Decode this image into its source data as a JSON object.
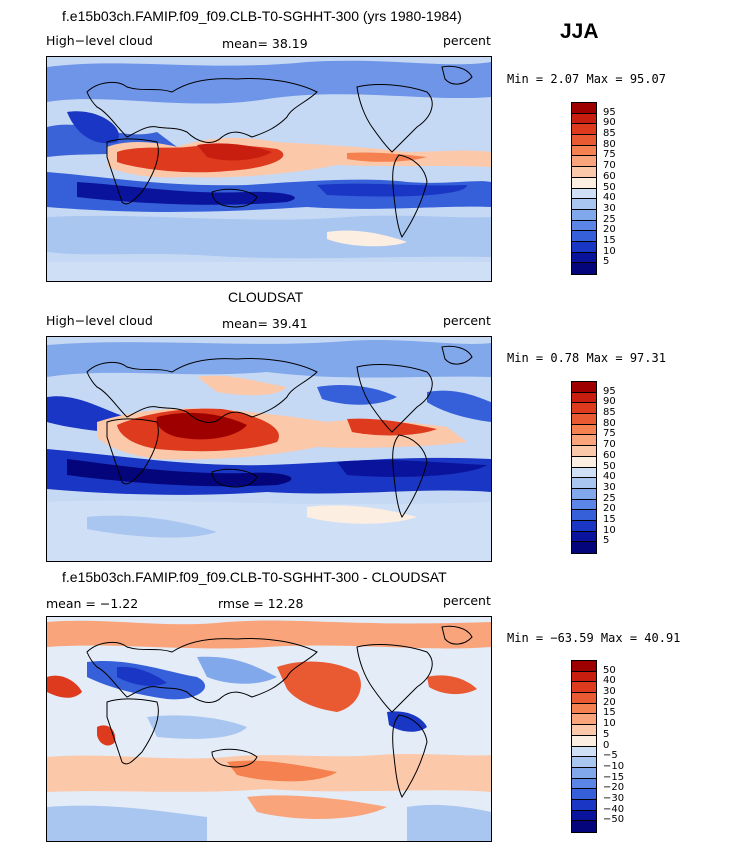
{
  "season": "JJA",
  "panels": [
    {
      "title": "f.e15b03ch.FAMIP.f09_f09.CLB-T0-SGHHT-300 (yrs 1980-1984)",
      "left_label": "High−level cloud",
      "center_label": "mean=  38.19",
      "right_label": "percent",
      "minmax": "Min =   2.07 Max =  95.07",
      "cbar_levels": [
        "95",
        "90",
        "85",
        "80",
        "75",
        "70",
        "60",
        "50",
        "40",
        "30",
        "25",
        "20",
        "15",
        "10",
        "5"
      ],
      "cbar_colors": [
        "#9e0000",
        "#c81e10",
        "#de3a1e",
        "#ea5a32",
        "#f4814f",
        "#f9a47a",
        "#fcc8aa",
        "#fdeee2",
        "#cfe0f6",
        "#a9c6f0",
        "#82a8ec",
        "#5b85e6",
        "#3560da",
        "#1a36c4",
        "#0a139c",
        "#04057a"
      ]
    },
    {
      "title": "CLOUDSAT",
      "left_label": "High−level cloud",
      "center_label": "mean=  39.41",
      "right_label": "percent",
      "minmax": "Min =   0.78 Max =  97.31",
      "cbar_levels": [
        "95",
        "90",
        "85",
        "80",
        "75",
        "70",
        "60",
        "50",
        "40",
        "30",
        "25",
        "20",
        "15",
        "10",
        "5"
      ],
      "cbar_colors": [
        "#9e0000",
        "#c81e10",
        "#de3a1e",
        "#ea5a32",
        "#f4814f",
        "#f9a47a",
        "#fcc8aa",
        "#fdeee2",
        "#cfe0f6",
        "#a9c6f0",
        "#82a8ec",
        "#5b85e6",
        "#3560da",
        "#1a36c4",
        "#0a139c",
        "#04057a"
      ]
    },
    {
      "title": "f.e15b03ch.FAMIP.f09_f09.CLB-T0-SGHHT-300 - CLOUDSAT",
      "left_label": "mean =  −1.22",
      "center_label": "rmse =  12.28",
      "right_label": "percent",
      "minmax": "Min = −63.59 Max =  40.91",
      "cbar_levels": [
        "50",
        "40",
        "30",
        "20",
        "15",
        "10",
        "5",
        "0",
        "−5",
        "−10",
        "−15",
        "−20",
        "−30",
        "−40",
        "−50"
      ],
      "cbar_colors": [
        "#9e0000",
        "#c81e10",
        "#de3a1e",
        "#ea5a32",
        "#f4814f",
        "#f9a47a",
        "#fcc8aa",
        "#fdeee2",
        "#cfe0f6",
        "#a9c6f0",
        "#82a8ec",
        "#5b85e6",
        "#3560da",
        "#1a36c4",
        "#0a139c",
        "#04057a"
      ]
    }
  ],
  "chart_data": [
    {
      "type": "heatmap",
      "title": "f.e15b03ch.FAMIP.f09_f09.CLB-T0-SGHHT-300 (yrs 1980-1984)",
      "variable": "High−level cloud",
      "units": "percent",
      "mean": 38.19,
      "min": 2.07,
      "max": 95.07,
      "contour_levels": [
        5,
        10,
        15,
        20,
        25,
        30,
        40,
        50,
        60,
        70,
        75,
        80,
        85,
        90,
        95
      ]
    },
    {
      "type": "heatmap",
      "title": "CLOUDSAT",
      "variable": "High−level cloud",
      "units": "percent",
      "mean": 39.41,
      "min": 0.78,
      "max": 97.31,
      "contour_levels": [
        5,
        10,
        15,
        20,
        25,
        30,
        40,
        50,
        60,
        70,
        75,
        80,
        85,
        90,
        95
      ]
    },
    {
      "type": "heatmap",
      "title": "f.e15b03ch.FAMIP.f09_f09.CLB-T0-SGHHT-300 - CLOUDSAT",
      "units": "percent",
      "mean": -1.22,
      "rmse": 12.28,
      "min": -63.59,
      "max": 40.91,
      "contour_levels": [
        -50,
        -40,
        -30,
        -20,
        -15,
        -10,
        -5,
        0,
        5,
        10,
        15,
        20,
        30,
        40,
        50
      ]
    }
  ]
}
